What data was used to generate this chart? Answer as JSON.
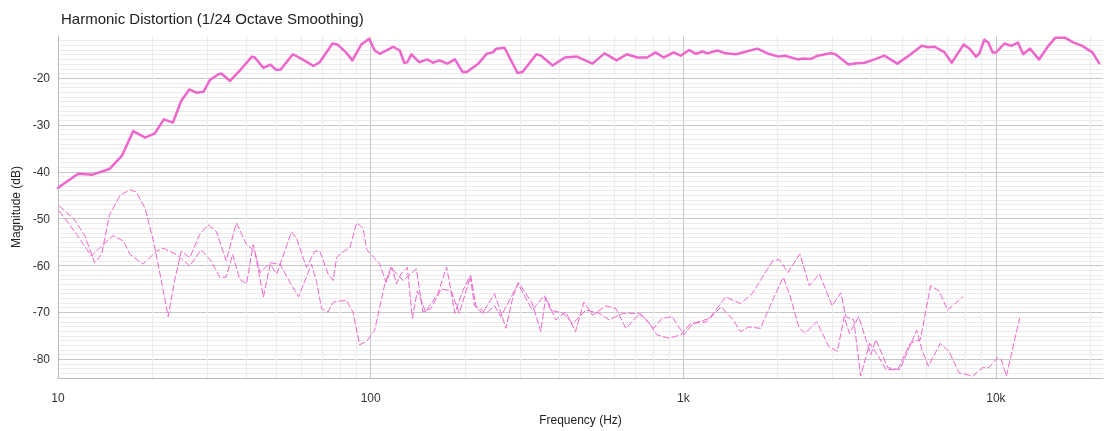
{
  "chart_data": {
    "type": "line",
    "title": "Harmonic Distortion (1/24 Octave Smoothing)",
    "xlabel": "Frequency (Hz)",
    "ylabel": "Magnitude (dB)",
    "log": "x",
    "xlim": [
      10,
      22000
    ],
    "xticks": [
      10,
      100,
      {
        "value": 1000,
        "label": "1k"
      },
      {
        "value": 10000,
        "label": "10k"
      }
    ],
    "ylim": [
      -84,
      -11
    ],
    "yticks": [
      -80,
      -70,
      -60,
      -50,
      -40,
      -30,
      -20
    ],
    "grid": true,
    "marker": "none",
    "series": [
      {
        "color": "#ee66cc",
        "line_style": "solid",
        "x": [
          10,
          11.6,
          12.9,
          14.6,
          16,
          17.4,
          19,
          20.4,
          21.8,
          23.3,
          24.8,
          26.3,
          27.7,
          29.2,
          30.6,
          32.5,
          33.3,
          35.5,
          38.6,
          41.7,
          42.6,
          45.4,
          47.8,
          49.8,
          51.5,
          56.4,
          60.1,
          63.8,
          65.6,
          68.7,
          75.5,
          78.2,
          83.4,
          87.4,
          93.4,
          98.9,
          103,
          107,
          118,
          124,
          128,
          131,
          135,
          143,
          152,
          158,
          166,
          176,
          186,
          197,
          203,
          221,
          235,
          246,
          252,
          268,
          295,
          306,
          339,
          351,
          382,
          418,
          457,
          512,
          560,
          612,
          660,
          712,
          766,
          815,
          865,
          932,
          980,
          1045,
          1097,
          1151,
          1195,
          1285,
          1365,
          1475,
          1725,
          1875,
          2015,
          2114,
          2324,
          2415,
          2564,
          2690,
          2958,
          3067,
          3376,
          3584,
          3804,
          4090,
          4396,
          4837,
          5260,
          5790,
          6070,
          6370,
          6850,
          7220,
          7550,
          7890,
          8230,
          8640,
          8850,
          9180,
          9450,
          9760,
          10010,
          10650,
          11200,
          11760,
          12220,
          12840,
          13730,
          14720,
          15470,
          16660,
          17730,
          18880,
          20350,
          21380
        ],
        "values": [
          -43.4,
          -40.4,
          -40.6,
          -39.4,
          -36.6,
          -31.3,
          -32.7,
          -31.8,
          -28.8,
          -29.5,
          -24.8,
          -22.4,
          -23.1,
          -22.9,
          -20.4,
          -19.2,
          -19.0,
          -20.6,
          -18.0,
          -15.4,
          -15.6,
          -17.8,
          -17.1,
          -18.2,
          -18.2,
          -14.9,
          -15.9,
          -16.9,
          -17.4,
          -16.6,
          -12.6,
          -12.8,
          -14.5,
          -16.2,
          -12.8,
          -11.6,
          -14.1,
          -14.8,
          -13.3,
          -14.1,
          -16.7,
          -16.6,
          -14.9,
          -16.6,
          -16.0,
          -16.7,
          -16.2,
          -16.9,
          -16.0,
          -18.7,
          -18.7,
          -16.9,
          -14.8,
          -14.5,
          -13.7,
          -13.5,
          -18.9,
          -18.7,
          -14.9,
          -15.2,
          -17.3,
          -15.6,
          -15.4,
          -16.9,
          -14.7,
          -16.2,
          -14.9,
          -15.6,
          -15.6,
          -14.5,
          -15.6,
          -14.5,
          -15.2,
          -14.0,
          -14.8,
          -14.3,
          -14.7,
          -14.1,
          -14.7,
          -14.9,
          -13.7,
          -14.8,
          -15.4,
          -15.2,
          -16.0,
          -15.8,
          -15.9,
          -15.2,
          -14.7,
          -14.9,
          -17.1,
          -16.8,
          -16.7,
          -16.0,
          -15.2,
          -16.9,
          -15.2,
          -13.1,
          -13.4,
          -13.3,
          -14.5,
          -16.7,
          -14.7,
          -12.8,
          -13.7,
          -15.4,
          -14.7,
          -11.8,
          -12.4,
          -14.5,
          -14.5,
          -12.6,
          -13.1,
          -12.4,
          -14.9,
          -13.7,
          -16.0,
          -13.1,
          -11.4,
          -11.4,
          -12.4,
          -13.1,
          -14.5,
          -16.8
        ]
      },
      {
        "color": "#ee66cc",
        "line_style": "dashed",
        "x": [
          10.1,
          11.2,
          12.2,
          13.1,
          13.8,
          14.6,
          15.8,
          17,
          17.8,
          19,
          20.2,
          21.4,
          22.5,
          23.6,
          24.8,
          26.4,
          28.4,
          30.2,
          32.1,
          34.5,
          37.2,
          40.1,
          42.6,
          45.4,
          47.7,
          50.1,
          55.8,
          57.9,
          62.3,
          66.3,
          68.8,
          73.1,
          75.9,
          77.8,
          80.5,
          85.8,
          90.2,
          94.5,
          97.2,
          107,
          112,
          117,
          121,
          125,
          131,
          136,
          141,
          150,
          164,
          175,
          186,
          197,
          208,
          215,
          228,
          249,
          271,
          285,
          297,
          329,
          350,
          363,
          391,
          421,
          452,
          481,
          512,
          565,
          609,
          655,
          727,
          804,
          854,
          920,
          1005,
          1071,
          1211,
          1366,
          1523,
          1660,
          1930,
          2030,
          2160,
          2360,
          2530,
          2725,
          2995,
          3190,
          3310,
          3510,
          3690,
          3950,
          4210,
          4450,
          4860,
          5310,
          5730,
          6180,
          6580,
          7000,
          7840
        ],
        "values": [
          -47.3,
          -49.9,
          -53.7,
          -59.4,
          -57.6,
          -49.2,
          -45.0,
          -43.8,
          -44.3,
          -47.8,
          -54.8,
          -63.2,
          -70.9,
          -63.2,
          -56.9,
          -58.3,
          -53.4,
          -51.3,
          -52.7,
          -59.0,
          -50.9,
          -55.5,
          -56.9,
          -66.7,
          -59.7,
          -61.8,
          -52.8,
          -54.1,
          -60.4,
          -56.9,
          -56.9,
          -61.8,
          -63.2,
          -58.3,
          -57.3,
          -56.2,
          -50.9,
          -52.0,
          -56.6,
          -59.7,
          -63.6,
          -60.4,
          -63.9,
          -61.8,
          -60.4,
          -71.3,
          -65.4,
          -69.9,
          -66.0,
          -60.3,
          -70.2,
          -65.4,
          -62.2,
          -68.6,
          -70.2,
          -66.0,
          -73.4,
          -66.7,
          -63.6,
          -68.1,
          -74.1,
          -66.7,
          -71.6,
          -69.9,
          -74.1,
          -67.8,
          -70.6,
          -68.6,
          -69.2,
          -73.4,
          -70.2,
          -73.4,
          -71.3,
          -70.9,
          -74.8,
          -72.4,
          -71.3,
          -66.7,
          -68.1,
          -66.0,
          -59.0,
          -58.7,
          -61.5,
          -57.5,
          -64.3,
          -61.8,
          -68.6,
          -65.8,
          -70.9,
          -71.6,
          -83.6,
          -76.6,
          -79.4,
          -82.2,
          -82.2,
          -76.6,
          -75.8,
          -64.3,
          -65.4,
          -69.5,
          -66.7
        ]
      },
      {
        "color": "#ee66cc",
        "line_style": "dashed",
        "x": [
          10.1,
          11.5,
          12.8,
          13.6,
          15,
          16.2,
          17,
          18.7,
          20.7,
          21.7,
          23.9,
          26.4,
          28.7,
          30.9,
          32.9,
          34.5,
          36.2,
          38.1,
          40.1,
          42.1,
          44.3,
          47.7,
          51.3,
          55.2,
          58.8,
          64.7,
          67.2,
          69.7,
          73.1,
          75.9,
          83.6,
          87.8,
          92.2,
          96.9,
          103,
          111,
          116,
          127,
          140,
          147,
          156,
          168,
          181,
          192,
          209,
          217,
          234,
          249,
          261,
          296,
          329,
          359,
          377,
          413,
          443,
          488,
          538,
          580,
          639,
          718,
          764,
          824,
          897,
          980,
          1054,
          1187,
          1322,
          1443,
          1523,
          1620,
          1765,
          1930,
          2090,
          2200,
          2340,
          2450,
          2670,
          2920,
          3110,
          3270,
          3400,
          3640,
          3980,
          4130,
          4510,
          4930,
          5580,
          5800,
          6080,
          6640,
          7070,
          7620,
          8420,
          9070,
          9500,
          10100,
          10400,
          10800,
          11900
        ],
        "values": [
          -48.4,
          -53.4,
          -58.0,
          -56.2,
          -53.6,
          -54.8,
          -57.6,
          -59.7,
          -56.9,
          -56.3,
          -57.6,
          -60.1,
          -56.6,
          -59.0,
          -62.5,
          -62.5,
          -57.6,
          -62.9,
          -63.9,
          -55.5,
          -61.5,
          -59.4,
          -59.7,
          -63.6,
          -66.7,
          -59.7,
          -63.6,
          -69.2,
          -69.9,
          -67.8,
          -67.4,
          -69.9,
          -76.9,
          -76.2,
          -73.8,
          -63.9,
          -60.4,
          -63.2,
          -60.7,
          -69.9,
          -69.2,
          -65.0,
          -65.4,
          -70.2,
          -62.2,
          -68.6,
          -70.2,
          -68.6,
          -70.9,
          -63.9,
          -69.5,
          -66.4,
          -69.5,
          -70.2,
          -72.4,
          -69.5,
          -70.2,
          -71.6,
          -70.2,
          -70.2,
          -71.6,
          -74.8,
          -75.5,
          -74.8,
          -72.4,
          -72.0,
          -68.8,
          -71.6,
          -74.1,
          -73.1,
          -73.4,
          -67.4,
          -62.5,
          -66.7,
          -73.1,
          -74.5,
          -72.0,
          -77.3,
          -78.3,
          -70.9,
          -74.5,
          -70.9,
          -79.0,
          -75.8,
          -81.8,
          -82.2,
          -73.8,
          -78.0,
          -81.5,
          -76.6,
          -78.3,
          -82.9,
          -83.6,
          -81.8,
          -81.8,
          -79.7,
          -80.1,
          -83.6,
          -71.3
        ]
      }
    ]
  }
}
